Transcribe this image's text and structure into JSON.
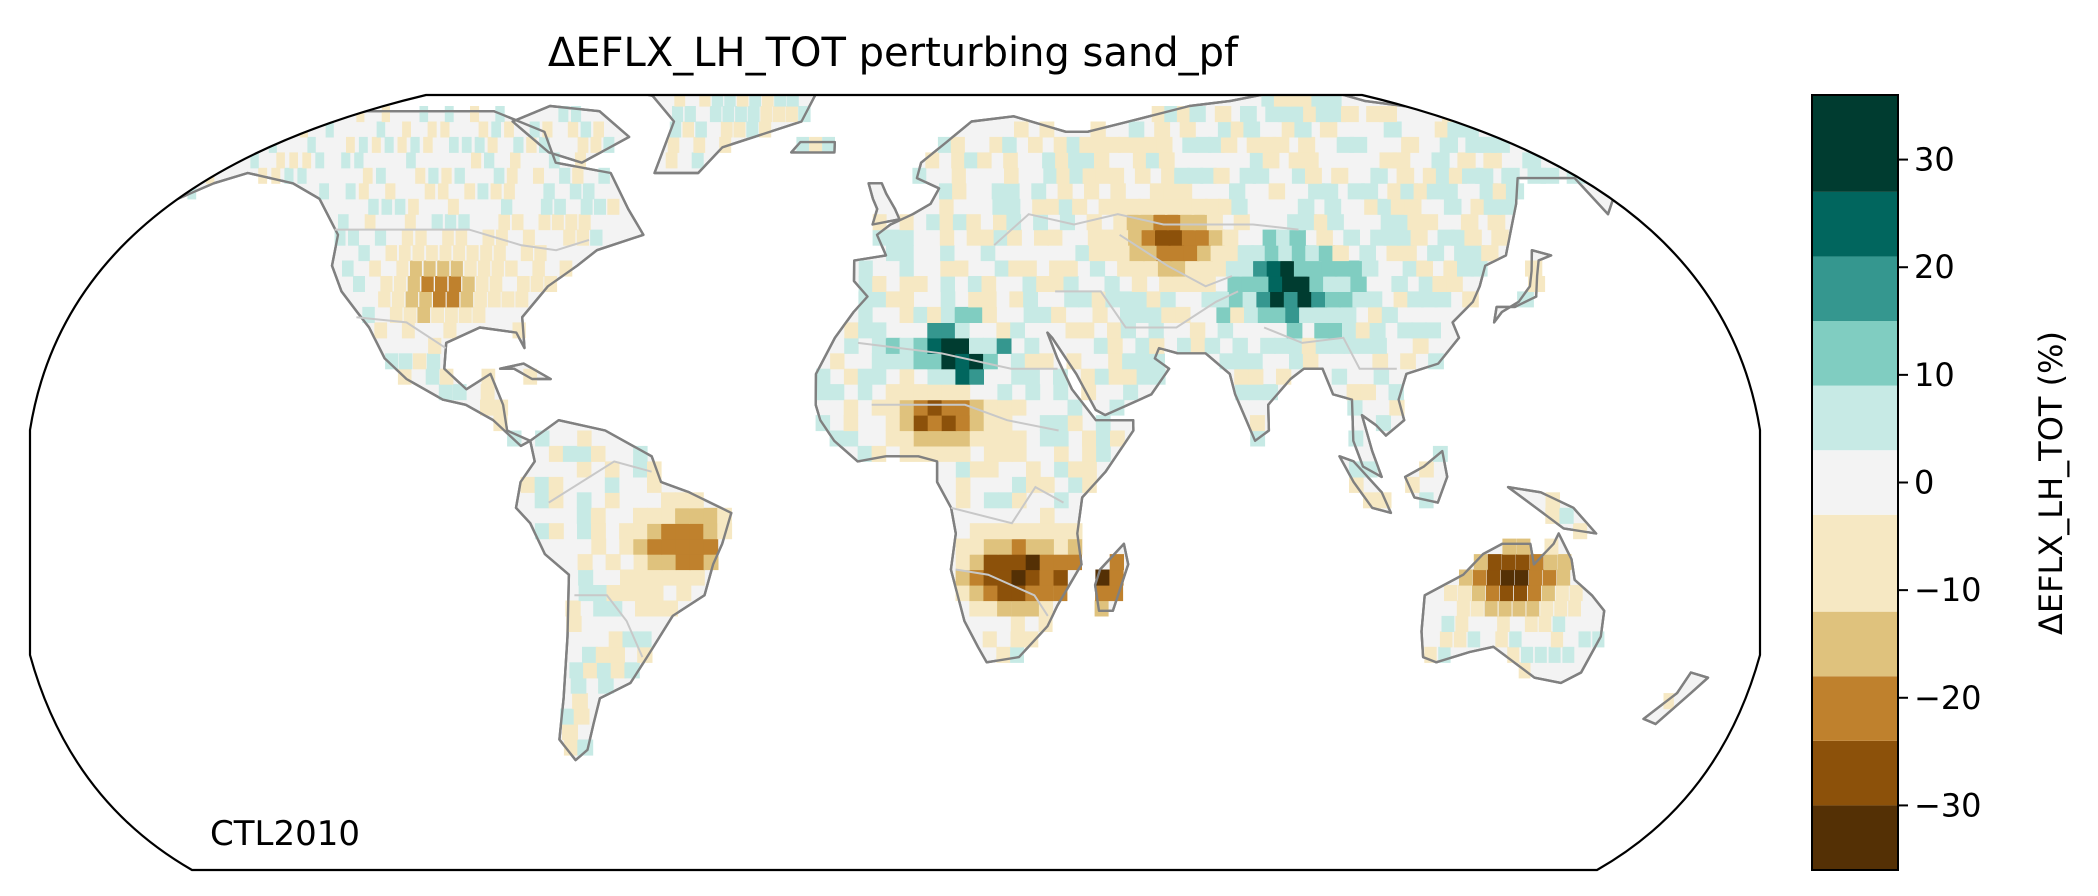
{
  "title": "ΔEFLX_LH_TOT perturbing sand_pf",
  "annotation": "CTL2010",
  "colorbar": {
    "label": "ΔEFLX_LH_TOT (%)",
    "range": [
      -36,
      36
    ],
    "bins": [
      {
        "from": -36,
        "to": -30,
        "color": "#543005"
      },
      {
        "from": -30,
        "to": -24,
        "color": "#8c510a"
      },
      {
        "from": -24,
        "to": -18,
        "color": "#bf812d"
      },
      {
        "from": -18,
        "to": -12,
        "color": "#dfc27d"
      },
      {
        "from": -12,
        "to": -3,
        "color": "#f6e8c3"
      },
      {
        "from": -3,
        "to": 3,
        "color": "#f3f3f3"
      },
      {
        "from": 3,
        "to": 9,
        "color": "#c7eae5"
      },
      {
        "from": 9,
        "to": 15,
        "color": "#80cdc1"
      },
      {
        "from": 15,
        "to": 21,
        "color": "#35978f"
      },
      {
        "from": 21,
        "to": 27,
        "color": "#01665e"
      },
      {
        "from": 27,
        "to": 36,
        "color": "#003c30"
      }
    ],
    "ticks": [
      {
        "value": 30,
        "label": "30"
      },
      {
        "value": 20,
        "label": "20"
      },
      {
        "value": 10,
        "label": "10"
      },
      {
        "value": 0,
        "label": "0"
      },
      {
        "value": -10,
        "label": "−10"
      },
      {
        "value": -20,
        "label": "−20"
      },
      {
        "value": -30,
        "label": "−30"
      }
    ]
  },
  "map": {
    "projection": "robinson",
    "coastline_color": "#808080",
    "border_color": "#c8c8c8",
    "hotspots": [
      {
        "name": "sahara",
        "lon": 12,
        "lat": 23,
        "value": 32
      },
      {
        "name": "tibet-north",
        "lon": 87,
        "lat": 38,
        "value": 25
      },
      {
        "name": "sahel",
        "lon": 10,
        "lat": 14,
        "value": -32
      },
      {
        "name": "southern-africa",
        "lon": 25,
        "lat": -18,
        "value": -33
      },
      {
        "name": "kazakhstan",
        "lon": 62,
        "lat": 47,
        "value": -26
      },
      {
        "name": "northern-australia",
        "lon": 133,
        "lat": -18,
        "value": -32
      },
      {
        "name": "brazil-east",
        "lon": -45,
        "lat": -12,
        "value": -25
      },
      {
        "name": "us-great-plains",
        "lon": -100,
        "lat": 38,
        "value": -22
      },
      {
        "name": "madagascar",
        "lon": 46,
        "lat": -19,
        "value": -28
      }
    ]
  }
}
